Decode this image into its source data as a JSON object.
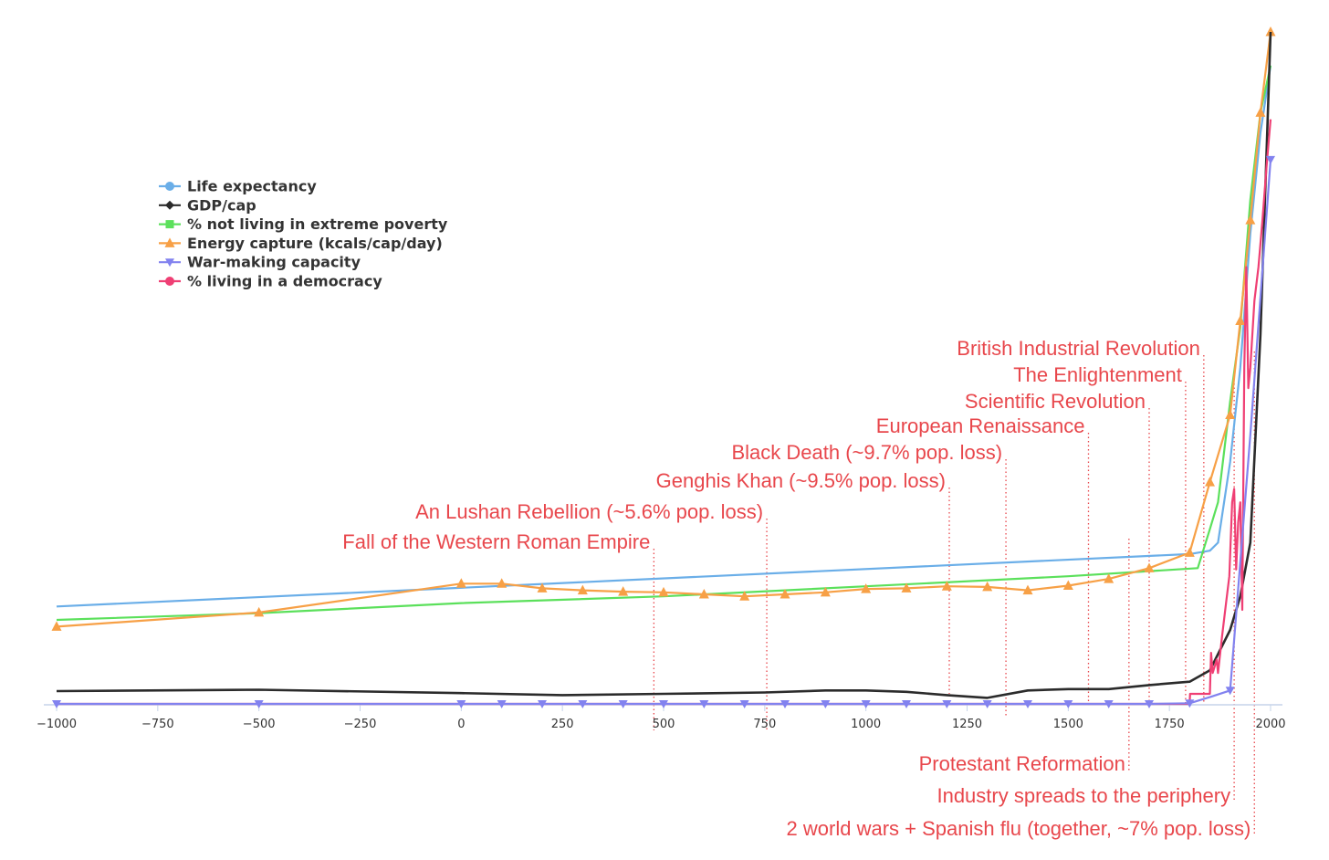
{
  "colors": {
    "life_expectancy": "#6aaee8",
    "gdp_cap": "#2b2b2b",
    "not_extreme_poverty": "#5be05b",
    "energy_capture": "#f7a046",
    "war_making": "#8282ef",
    "democracy": "#ef3f74",
    "annotation": "#e8474c",
    "axis": "#c6d4ea"
  },
  "chart_data": {
    "type": "line",
    "title": "",
    "xlabel": "",
    "ylabel": "",
    "xlim": [
      -1000,
      2000
    ],
    "ylim": [
      0,
      100
    ],
    "x_ticks": [
      "−1000",
      "−750",
      "−500",
      "−250",
      "0",
      "250",
      "500",
      "750",
      "1000",
      "1250",
      "1500",
      "1750",
      "2000"
    ],
    "y_axis_labels_shown": false,
    "grid": false,
    "legend_position": "top-left",
    "series": [
      {
        "name": "Life expectancy",
        "key": "life_expectancy",
        "marker": "circle",
        "points": [
          [
            -1000,
            14.5
          ],
          [
            1800,
            22.3
          ],
          [
            1850,
            22.8
          ],
          [
            1870,
            24
          ],
          [
            1900,
            36
          ],
          [
            1925,
            50
          ],
          [
            1950,
            70
          ],
          [
            1975,
            85
          ],
          [
            2000,
            95
          ]
        ]
      },
      {
        "name": "GDP/cap",
        "key": "gdp_cap",
        "marker": "diamond",
        "points": [
          [
            -1000,
            1.9
          ],
          [
            -500,
            2.1
          ],
          [
            0,
            1.6
          ],
          [
            250,
            1.3
          ],
          [
            500,
            1.5
          ],
          [
            750,
            1.7
          ],
          [
            900,
            2.0
          ],
          [
            1000,
            2.0
          ],
          [
            1100,
            1.8
          ],
          [
            1200,
            1.3
          ],
          [
            1300,
            0.9
          ],
          [
            1400,
            2.0
          ],
          [
            1500,
            2.2
          ],
          [
            1600,
            2.2
          ],
          [
            1700,
            2.8
          ],
          [
            1800,
            3.3
          ],
          [
            1850,
            5.0
          ],
          [
            1900,
            11.0
          ],
          [
            1925,
            16
          ],
          [
            1950,
            24
          ],
          [
            1975,
            55
          ],
          [
            2000,
            100
          ]
        ]
      },
      {
        "name": "% not living in extreme poverty",
        "key": "not_extreme_poverty",
        "marker": "square",
        "points": [
          [
            -1000,
            12.5
          ],
          [
            -500,
            13.5
          ],
          [
            0,
            15.0
          ],
          [
            500,
            16.0
          ],
          [
            1000,
            17.5
          ],
          [
            1500,
            19.0
          ],
          [
            1820,
            20.2
          ],
          [
            1850,
            26
          ],
          [
            1870,
            30
          ],
          [
            1900,
            45
          ],
          [
            1925,
            56
          ],
          [
            1950,
            75
          ],
          [
            1975,
            88
          ],
          [
            2000,
            95
          ]
        ]
      },
      {
        "name": "Energy capture (kcals/cap/day)",
        "key": "energy_capture",
        "marker": "triangle-up",
        "points": [
          [
            -1000,
            11.5
          ],
          [
            -500,
            13.6
          ],
          [
            0,
            17.9
          ],
          [
            100,
            17.9
          ],
          [
            200,
            17.2
          ],
          [
            300,
            16.9
          ],
          [
            400,
            16.7
          ],
          [
            500,
            16.6
          ],
          [
            600,
            16.3
          ],
          [
            700,
            16.0
          ],
          [
            800,
            16.3
          ],
          [
            900,
            16.6
          ],
          [
            1000,
            17.1
          ],
          [
            1100,
            17.2
          ],
          [
            1200,
            17.5
          ],
          [
            1300,
            17.4
          ],
          [
            1400,
            16.9
          ],
          [
            1500,
            17.6
          ],
          [
            1600,
            18.6
          ],
          [
            1700,
            20.2
          ],
          [
            1800,
            22.5
          ],
          [
            1850,
            33
          ],
          [
            1900,
            43
          ],
          [
            1925,
            57
          ],
          [
            1950,
            72
          ],
          [
            1975,
            88
          ],
          [
            2000,
            100
          ]
        ]
      },
      {
        "name": "War-making capacity",
        "key": "war_making",
        "marker": "triangle-down",
        "points": [
          [
            -1000,
            0
          ],
          [
            -500,
            0
          ],
          [
            0,
            0
          ],
          [
            100,
            0
          ],
          [
            200,
            0
          ],
          [
            300,
            0
          ],
          [
            400,
            0
          ],
          [
            500,
            0
          ],
          [
            600,
            0
          ],
          [
            700,
            0
          ],
          [
            800,
            0
          ],
          [
            900,
            0
          ],
          [
            1000,
            0
          ],
          [
            1100,
            0
          ],
          [
            1200,
            0
          ],
          [
            1300,
            0
          ],
          [
            1400,
            0
          ],
          [
            1500,
            0
          ],
          [
            1600,
            0
          ],
          [
            1700,
            0
          ],
          [
            1800,
            0.1
          ],
          [
            1850,
            1.0
          ],
          [
            1900,
            2.0
          ],
          [
            1950,
            40
          ],
          [
            2000,
            81
          ]
        ]
      },
      {
        "name": "% living in a democracy",
        "key": "democracy",
        "marker": "circle",
        "points": [
          [
            -1000,
            0
          ],
          [
            1800,
            0
          ],
          [
            1801,
            1.5
          ],
          [
            1850,
            1.5
          ],
          [
            1853,
            7.6
          ],
          [
            1857,
            4.6
          ],
          [
            1867,
            6.6
          ],
          [
            1870,
            4.6
          ],
          [
            1880,
            10
          ],
          [
            1890,
            15
          ],
          [
            1898,
            19
          ],
          [
            1905,
            30
          ],
          [
            1910,
            32
          ],
          [
            1915,
            20
          ],
          [
            1920,
            27
          ],
          [
            1925,
            30
          ],
          [
            1930,
            14
          ],
          [
            1935,
            50
          ],
          [
            1940,
            65
          ],
          [
            1945,
            47
          ],
          [
            1950,
            50
          ],
          [
            1960,
            60
          ],
          [
            1970,
            65
          ],
          [
            1980,
            72
          ],
          [
            1990,
            80
          ],
          [
            2000,
            87
          ]
        ]
      }
    ],
    "annotations": [
      {
        "label": "Fall of the Western Roman Empire",
        "year": 476
      },
      {
        "label": "An Lushan Rebellion (~5.6% pop. loss)",
        "year": 755
      },
      {
        "label": "Genghis Khan (~9.5% pop. loss)",
        "year": 1206
      },
      {
        "label": "Black Death (~9.7% pop. loss)",
        "year": 1346
      },
      {
        "label": "European Renaissance",
        "year": 1550
      },
      {
        "label": "Scientific Revolution",
        "year": 1700
      },
      {
        "label": "The Enlightenment",
        "year": 1790
      },
      {
        "label": "British Industrial Revolution",
        "year": 1835
      },
      {
        "label": "Protestant Reformation",
        "year": 1650
      },
      {
        "label": "Industry spreads to the periphery",
        "year": 1910
      },
      {
        "label": "2 world wars + Spanish flu (together, ~7%  pop. loss)",
        "year": 1960
      }
    ]
  }
}
